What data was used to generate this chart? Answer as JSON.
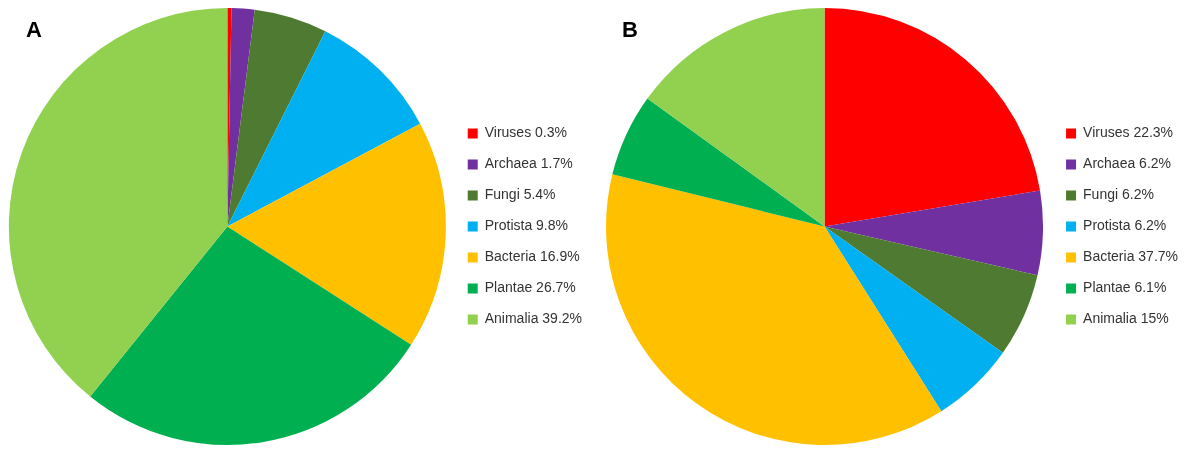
{
  "chart_data": [
    {
      "type": "pie",
      "title": "A",
      "categories": [
        "Viruses 0.3%",
        "Archaea 1.7%",
        "Fungi 5.4%",
        "Protista 9.8%",
        "Bacteria 16.9%",
        "Plantae 26.7%",
        "Animalia 39.2%"
      ],
      "values": [
        0.3,
        1.7,
        5.4,
        9.8,
        16.9,
        26.7,
        39.2
      ],
      "colors": [
        "#ff0000",
        "#7030a0",
        "#4e7a32",
        "#00b0f0",
        "#ffc000",
        "#00b050",
        "#92d050"
      ],
      "legend": "right"
    },
    {
      "type": "pie",
      "title": "B",
      "categories": [
        "Viruses 22.3%",
        "Archaea 6.2%",
        "Fungi 6.2%",
        "Protista 6.2%",
        "Bacteria 37.7%",
        "Plantae 6.1%",
        "Animalia 15%"
      ],
      "values": [
        22.3,
        6.2,
        6.2,
        6.2,
        37.7,
        6.1,
        15
      ],
      "colors": [
        "#ff0000",
        "#7030a0",
        "#4e7a32",
        "#00b0f0",
        "#ffc000",
        "#00b050",
        "#92d050"
      ],
      "legend": "right"
    }
  ]
}
